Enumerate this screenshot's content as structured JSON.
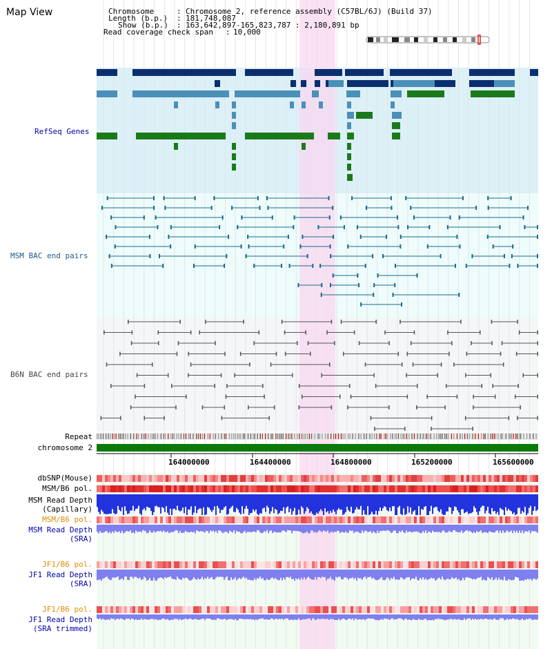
{
  "app": {
    "title": "Map View"
  },
  "header": {
    "rows": [
      {
        "key": "Chromosome",
        "sep": ":",
        "value": "Chromosome 2, reference assembly (C57BL/6J) (Build 37)"
      },
      {
        "key": "Length (b.p.)",
        "sep": ":",
        "value": "181,748,087"
      },
      {
        "key": "Show (b.p.)",
        "sep": ":",
        "value": "163,642,897-165,823,787 : 2,180,891 bp"
      },
      {
        "key": "Read coverage check span",
        "sep": ":",
        "value": "10,000"
      }
    ]
  },
  "tracks": {
    "refseq": "RefSeq Genes",
    "msm_bac": "MSM BAC end pairs",
    "b6n_bac": "B6N BAC end pairs",
    "repeat": "Repeat",
    "chromosome": "chromosome 2",
    "dbsnp": "dbSNP(Mouse)",
    "msm_b6_pol_1": "MSM/B6 pol.",
    "msm_read_depth_cap_1": "MSM Read Depth",
    "msm_read_depth_cap_2": "(Capillary)",
    "msm_b6_pol_2": "MSM/B6 pol.",
    "msm_read_depth_sra_1": "MSM Read Depth",
    "msm_read_depth_sra_2": "(SRA)",
    "jf1_b6_pol_1": "JF1/B6 pol.",
    "jf1_read_depth_sra_1": "JF1 Read Depth",
    "jf1_read_depth_sra_2": "(SRA)",
    "jf1_b6_pol_2": "JF1/B6 pol.",
    "jf1_read_depth_trim_1": "JF1 Read Depth",
    "jf1_read_depth_trim_2": "(SRA trimmed)"
  },
  "axis": {
    "ticks": [
      "164000000",
      "164400000",
      "164800000",
      "165200000",
      "165600000"
    ]
  },
  "colors": {
    "refseq_bg": "#dcf0f8",
    "bac_bg": "#eefcfc",
    "b6n_bg": "#f4f6f8",
    "highlight": "#f8d8f0",
    "gene_dark": "#0a2e6e",
    "gene_mid": "#4a90b8",
    "gene_green": "#1a7a1a",
    "msm_line": "#1a6a8a",
    "b6n_line": "#555555",
    "chromosome": "#0a7a0a",
    "label_blue": "#0000aa",
    "label_msm": "#1a5a8a",
    "label_orange": "#e08a00"
  }
}
